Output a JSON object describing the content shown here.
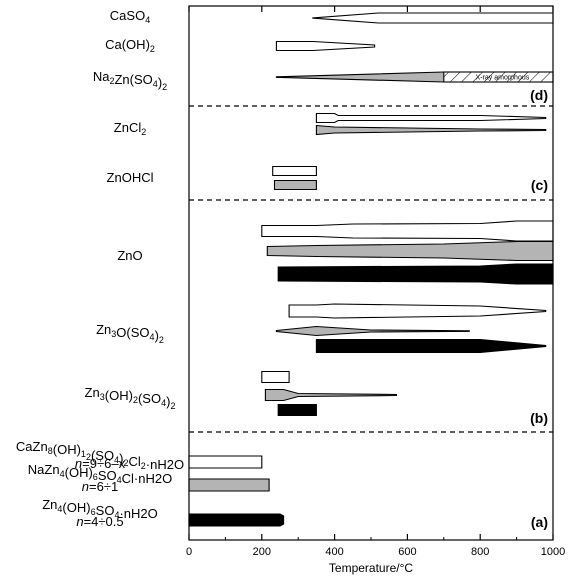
{
  "chart_data": {
    "type": "range",
    "xlabel": "Temperature/°C",
    "xlim": [
      0,
      1000
    ],
    "xticks": [
      "0",
      "200",
      "400",
      "600",
      "800",
      "1000"
    ],
    "fill_colors": {
      "white": "#ffffff",
      "grey": "#b4b4b4",
      "black": "#000000"
    },
    "panels": [
      {
        "label": "(d)",
        "rows": [
          {
            "name": "CaSO4",
            "bands": [
              {
                "fill": "white",
                "thick": [
                  [
                    340,
                    0.2
                  ],
                  [
                    520,
                    10
                  ],
                  [
                    1000,
                    10
                  ]
                ]
              }
            ]
          },
          {
            "name": "Ca(OH)2",
            "bands": [
              {
                "fill": "white",
                "thick": [
                  [
                    240,
                    9
                  ],
                  [
                    340,
                    9
                  ],
                  [
                    510,
                    2
                  ]
                ]
              }
            ]
          },
          {
            "name": "Na2Zn(SO4)2",
            "bands": [
              {
                "fill": "grey",
                "thick": [
                  [
                    240,
                    0.5
                  ],
                  [
                    700,
                    10
                  ],
                  [
                    1000,
                    10
                  ]
                ]
              }
            ],
            "annotation": {
              "text": "X-ray amorphous",
              "range": [
                700,
                1000
              ]
            }
          }
        ]
      },
      {
        "label": "(c)",
        "rows": [
          {
            "name": "ZnCl2",
            "bands": [
              {
                "fill": "white",
                "thick": [
                  [
                    350,
                    9
                  ],
                  [
                    400,
                    9
                  ],
                  [
                    410,
                    5
                  ],
                  [
                    800,
                    5
                  ],
                  [
                    980,
                    1
                  ]
                ]
              },
              {
                "fill": "grey",
                "thick": [
                  [
                    350,
                    9
                  ],
                  [
                    400,
                    6
                  ],
                  [
                    800,
                    2
                  ],
                  [
                    980,
                    1
                  ]
                ]
              }
            ]
          },
          {
            "name": "ZnOHCl",
            "bands": [
              {
                "fill": "white",
                "thick": [
                  [
                    230,
                    9
                  ],
                  [
                    350,
                    9
                  ]
                ]
              },
              {
                "fill": "grey",
                "thick": [
                  [
                    235,
                    9
                  ],
                  [
                    350,
                    9
                  ]
                ]
              }
            ]
          }
        ]
      },
      {
        "label": "",
        "rows": [
          {
            "name": "ZnO",
            "bands": [
              {
                "fill": "white",
                "thick": [
                  [
                    200,
                    11
                  ],
                  [
                    350,
                    11
                  ],
                  [
                    450,
                    14
                  ],
                  [
                    800,
                    15
                  ],
                  [
                    900,
                    20
                  ],
                  [
                    1000,
                    20
                  ]
                ]
              },
              {
                "fill": "grey",
                "thick": [
                  [
                    215,
                    9
                  ],
                  [
                    350,
                    11
                  ],
                  [
                    700,
                    14
                  ],
                  [
                    900,
                    19
                  ],
                  [
                    1000,
                    19
                  ]
                ]
              },
              {
                "fill": "black",
                "thick": [
                  [
                    245,
                    14
                  ],
                  [
                    800,
                    16
                  ],
                  [
                    900,
                    20
                  ],
                  [
                    1000,
                    20
                  ]
                ]
              }
            ]
          }
        ]
      },
      {
        "label": "(b)",
        "rows": [
          {
            "name": "Zn3O(SO4)2",
            "bands": [
              {
                "fill": "white",
                "thick": [
                  [
                    275,
                    12
                  ],
                  [
                    350,
                    12
                  ],
                  [
                    400,
                    14
                  ],
                  [
                    800,
                    10
                  ],
                  [
                    980,
                    1
                  ]
                ]
              },
              {
                "fill": "grey",
                "thick": [
                  [
                    240,
                    1
                  ],
                  [
                    350,
                    9
                  ],
                  [
                    500,
                    2
                  ],
                  [
                    770,
                    0.5
                  ]
                ]
              },
              {
                "fill": "black",
                "thick": [
                  [
                    350,
                    13
                  ],
                  [
                    800,
                    13
                  ],
                  [
                    980,
                    1
                  ]
                ]
              }
            ]
          },
          {
            "name": "Zn3(OH)2(SO4)2",
            "bands": [
              {
                "fill": "white",
                "thick": [
                  [
                    200,
                    11
                  ],
                  [
                    275,
                    11
                  ]
                ]
              },
              {
                "fill": "grey",
                "thick": [
                  [
                    210,
                    11
                  ],
                  [
                    260,
                    11
                  ],
                  [
                    300,
                    3
                  ],
                  [
                    570,
                    1
                  ]
                ]
              },
              {
                "fill": "black",
                "thick": [
                  [
                    245,
                    11
                  ],
                  [
                    350,
                    11
                  ]
                ]
              }
            ]
          }
        ]
      },
      {
        "label": "(a)",
        "rows": [
          {
            "name": "CaZn8(OH)12(SO4)2Cl2·nH2O",
            "sub": "n=9÷6–x",
            "bands": [
              {
                "fill": "white",
                "thick": [
                  [
                    0,
                    12
                  ],
                  [
                    200,
                    12
                  ]
                ]
              }
            ]
          },
          {
            "name": "NaZn4(OH)6SO4Cl·nH2O",
            "sub": "n=6÷1",
            "bands": [
              {
                "fill": "grey",
                "thick": [
                  [
                    0,
                    12
                  ],
                  [
                    220,
                    12
                  ]
                ]
              }
            ]
          },
          {
            "name": "Zn4(OH)6SO4·nH2O",
            "sub": "n=4÷0.5",
            "bands": [
              {
                "fill": "black",
                "thick": [
                  [
                    0,
                    12
                  ],
                  [
                    250,
                    12
                  ],
                  [
                    260,
                    8
                  ]
                ]
              }
            ]
          }
        ]
      }
    ]
  }
}
